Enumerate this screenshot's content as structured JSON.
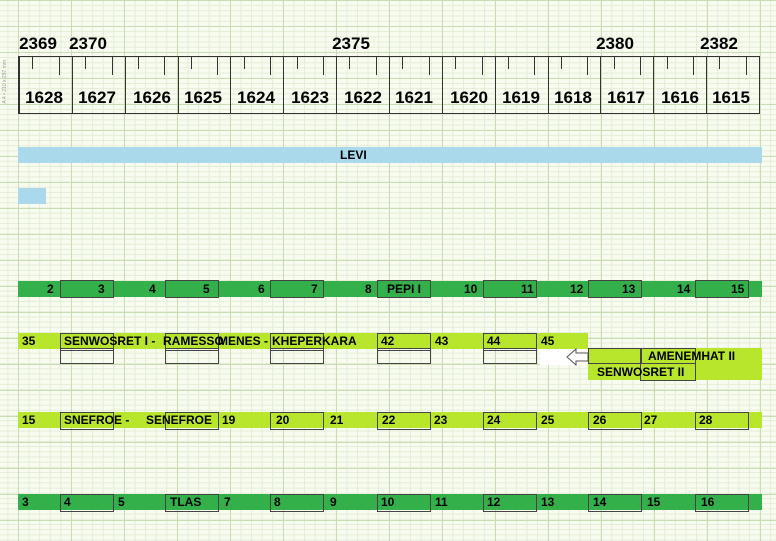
{
  "top_numbers": [
    {
      "label": "2369",
      "pos": 0
    },
    {
      "label": "2370",
      "pos": 1
    },
    {
      "label": "2375",
      "pos": 6
    },
    {
      "label": "2380",
      "pos": 11
    },
    {
      "label": "2382",
      "pos": 13
    }
  ],
  "year_labels": [
    "1628",
    "1627",
    "1626",
    "1625",
    "1624",
    "1623",
    "1622",
    "1621",
    "1620",
    "1619",
    "1618",
    "1617",
    "1616",
    "1615"
  ],
  "side_note": "A 4 • 210 x 297 mm",
  "levi": {
    "label": "LEVI",
    "color": "#a9d9ea"
  },
  "rows": {
    "row1": {
      "color": "#33b04a",
      "cells": [
        "2",
        "3",
        "4",
        "5",
        "6",
        "7",
        "8",
        "PEPI I",
        "10",
        "11",
        "12",
        "13",
        "14",
        "15"
      ]
    },
    "row2": {
      "color": "#b8e62d",
      "start": "35",
      "names": [
        "SENWOSRET I -",
        "RAMESSO",
        "MENES -",
        "KHEPER",
        "KARA"
      ],
      "nums": [
        "42",
        "43",
        "44",
        "45"
      ],
      "amenemhat": "AMENEMHAT II",
      "senwosret2": "SENWOSRET II"
    },
    "row3": {
      "color": "#b8e62d",
      "start": "15",
      "names": [
        "SNEFROE -",
        "SENEFROE"
      ],
      "nums": [
        "19",
        "20",
        "21",
        "22",
        "23",
        "24",
        "25",
        "26",
        "27",
        "28"
      ]
    },
    "row4": {
      "color": "#33b04a",
      "cells": [
        "3",
        "4",
        "5",
        "TLAS",
        "7",
        "8",
        "9",
        "10",
        "11",
        "12",
        "13",
        "14",
        "15",
        "16"
      ]
    }
  }
}
